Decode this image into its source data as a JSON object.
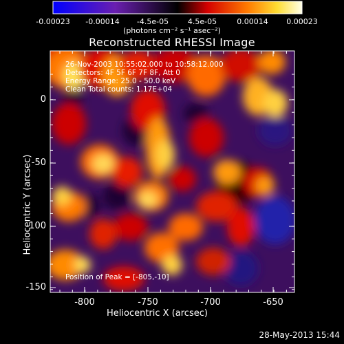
{
  "colorbar": {
    "ticks": [
      "-0.00023",
      "-0.00014",
      "-4.5e-05",
      "4.5e-05",
      "0.00014",
      "0.00023"
    ],
    "unit": "(photons cm⁻² s⁻¹ asec⁻²)",
    "range": [
      -0.00023,
      0.00023
    ]
  },
  "chart_data": {
    "type": "heatmap",
    "title": "Reconstructed RHESSI Image",
    "xlabel": "Heliocentric X (arcsec)",
    "ylabel": "Heliocentric Y (arcsec)",
    "xlim": [
      -828,
      -633
    ],
    "ylim": [
      -152,
      23
    ],
    "xticks": [
      "-800",
      "-750",
      "-700",
      "-650"
    ],
    "yticks": [
      "0",
      "-50",
      "-100",
      "-150"
    ],
    "annotations": [
      "26-Nov-2003 10:55:02.000 to 10:58:12.000",
      "Detectors: 4F 5F 6F 7F 8F, Att 0",
      "Energy Range: 25.0 - 50.0 keV",
      "Clean     Total counts: 1.17E+04"
    ],
    "peak_label": "Position of Peak = [-805,-10]",
    "peak": [
      -805,
      -10
    ]
  },
  "footer": {
    "timestamp": "28-May-2013 15:44"
  }
}
